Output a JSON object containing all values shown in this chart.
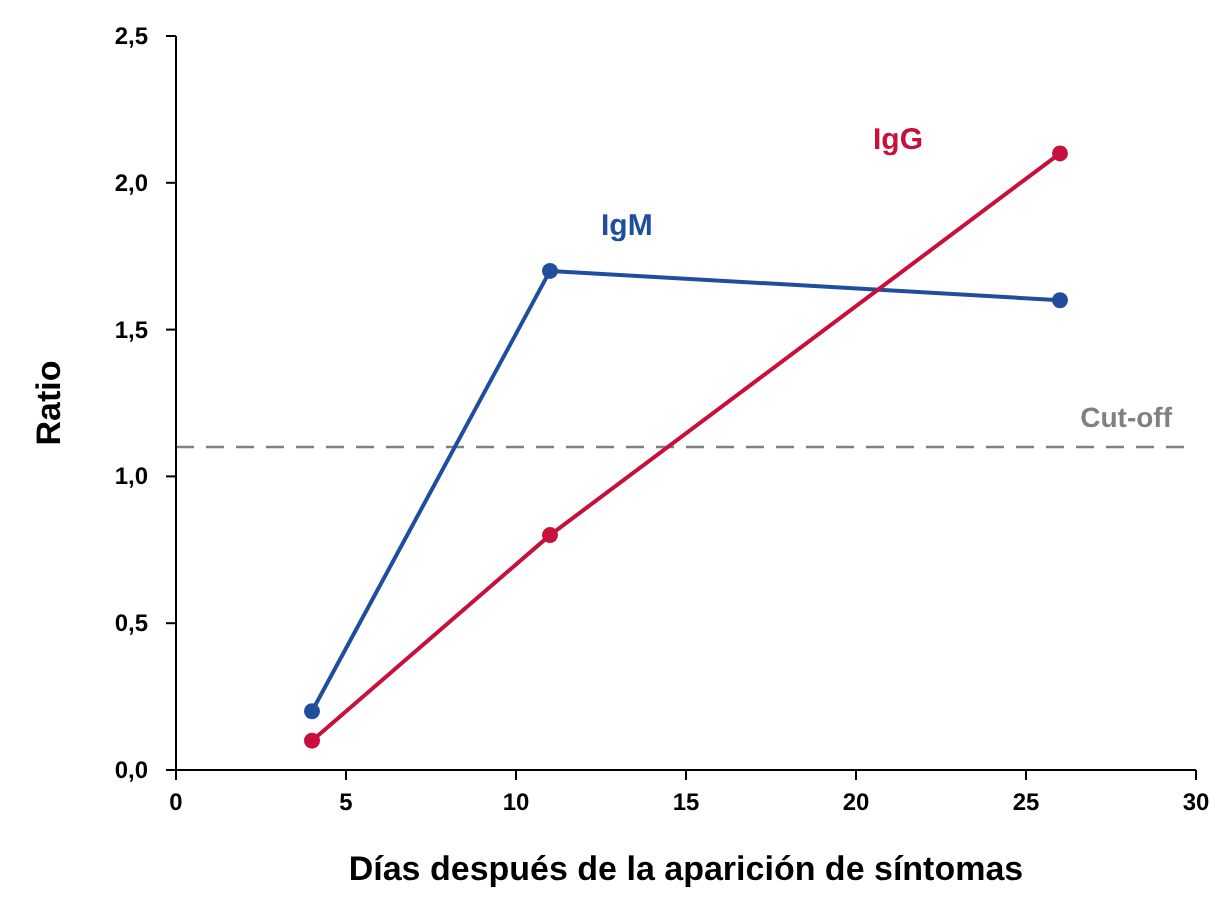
{
  "chart_data": {
    "type": "line",
    "xlabel": "Días después de la aparición de síntomas",
    "ylabel": "Ratio",
    "xlim": [
      0,
      30
    ],
    "xticks": [
      0,
      5,
      10,
      15,
      20,
      25,
      30
    ],
    "ylim": [
      0,
      2.5
    ],
    "yticks": [
      {
        "value": 0,
        "label": "0,0"
      },
      {
        "value": 0.5,
        "label": "0,5"
      },
      {
        "value": 1,
        "label": "1,0"
      },
      {
        "value": 1.5,
        "label": "1,5"
      },
      {
        "value": 2,
        "label": "2,0"
      },
      {
        "value": 2.5,
        "label": "2,5"
      }
    ],
    "series": [
      {
        "name": "IgM",
        "color": "#1f4e9e",
        "x": [
          4,
          11,
          26
        ],
        "values": [
          0.2,
          1.7,
          1.6
        ]
      },
      {
        "name": "IgG",
        "color": "#c8103c",
        "x": [
          4,
          11,
          26
        ],
        "values": [
          0.1,
          0.8,
          2.1
        ]
      }
    ],
    "ref_lines": [
      {
        "axis": "y",
        "value": 1.1,
        "label": "Cut-off",
        "color": "#808080",
        "line_style": "dashed"
      }
    ],
    "marker": "circle",
    "grid": false,
    "legend": false
  }
}
